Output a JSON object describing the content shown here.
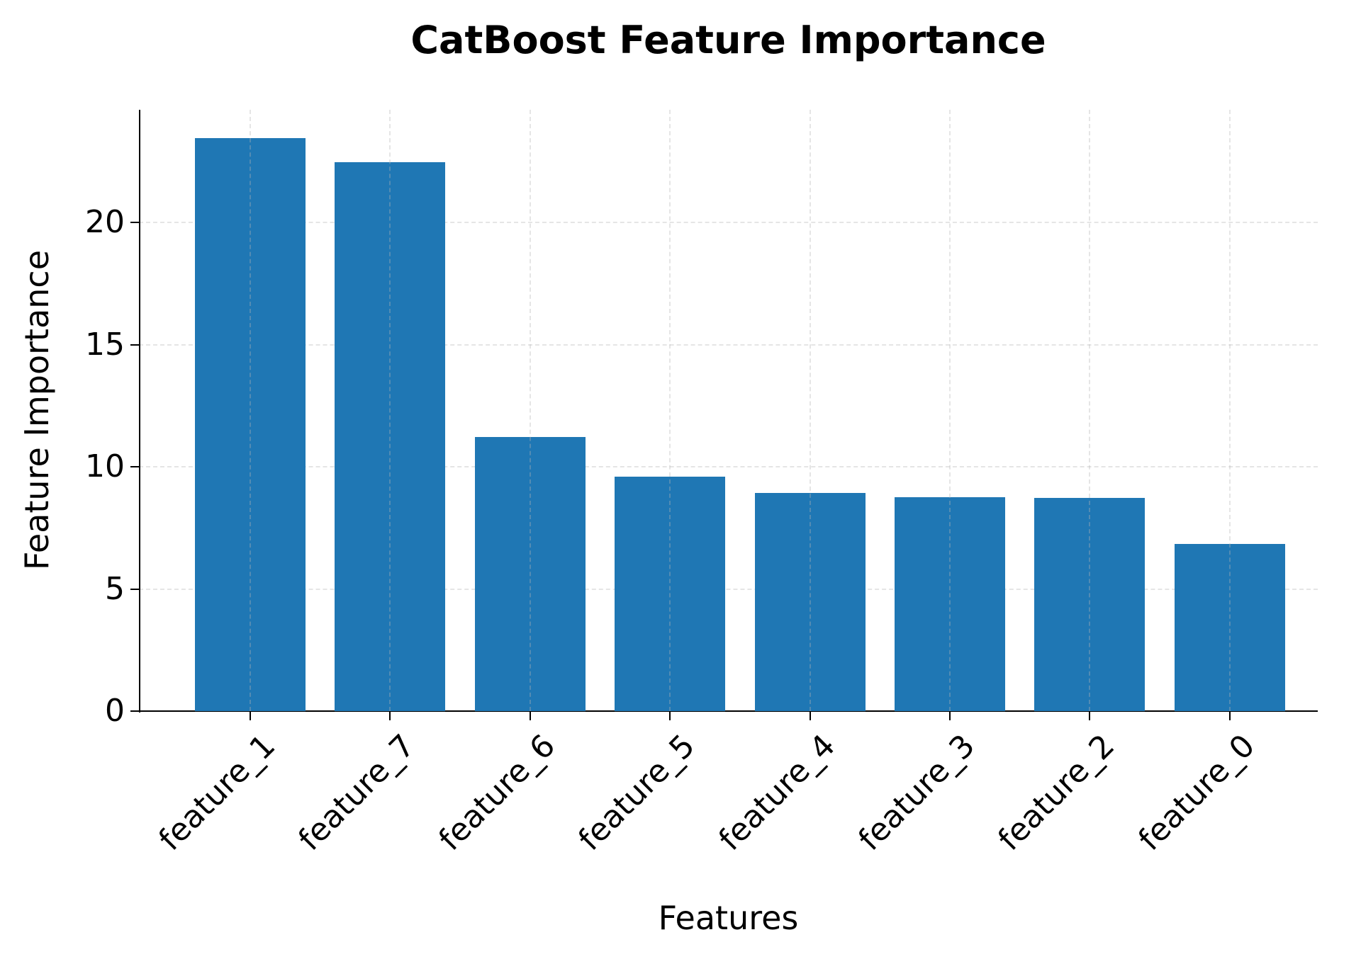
{
  "chart_data": {
    "type": "bar",
    "title": "CatBoost Feature Importance",
    "xlabel": "Features",
    "ylabel": "Feature Importance",
    "categories": [
      "feature_1",
      "feature_7",
      "feature_6",
      "feature_5",
      "feature_4",
      "feature_3",
      "feature_2",
      "feature_0"
    ],
    "values": [
      23.45,
      22.45,
      11.22,
      9.59,
      8.93,
      8.75,
      8.73,
      6.84
    ],
    "ylim": [
      0,
      24.6
    ],
    "yticks": [
      "0",
      "5",
      "10",
      "15",
      "20"
    ],
    "ytick_values": [
      0,
      5,
      10,
      15,
      20
    ],
    "grid": true,
    "grid_style": "dashed",
    "bar_color": "#1f77b4",
    "xtick_rotation": 45,
    "legend": null
  }
}
